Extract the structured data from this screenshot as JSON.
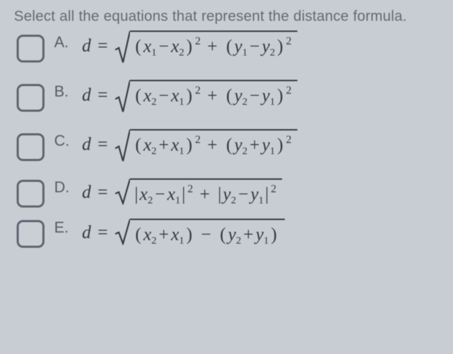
{
  "prompt": "Select all the equations that represent the distance formula.",
  "colors": {
    "bg": "#c8cdd4",
    "text": "#3a4048",
    "mutedText": "#636a74",
    "math": "#2e333b",
    "checkboxBorder": "#5a6270"
  },
  "typography": {
    "promptFontSize": 21,
    "letterFontSize": 22,
    "mathFontSize": 26,
    "subFontSize": 15,
    "supFontSize": 16,
    "mathFont": "Times New Roman"
  },
  "checkbox": {
    "width": 34,
    "height": 34,
    "borderRadius": 9,
    "borderWidth": 3
  },
  "sqrt": {
    "vinculumThickness": 2.2
  },
  "options": [
    {
      "letter": "A.",
      "checked": false,
      "formula": {
        "lhs": "d",
        "form": "sqrt_sum_squares",
        "terms": [
          {
            "bracket": "paren",
            "a": {
              "var": "x",
              "sub": "1"
            },
            "op": "−",
            "b": {
              "var": "x",
              "sub": "2"
            },
            "power": 2
          },
          {
            "bracket": "paren",
            "a": {
              "var": "y",
              "sub": "1"
            },
            "op": "−",
            "b": {
              "var": "y",
              "sub": "2"
            },
            "power": 2
          }
        ],
        "joiner": "+",
        "tallRadical": true
      }
    },
    {
      "letter": "B.",
      "checked": false,
      "formula": {
        "lhs": "d",
        "form": "sqrt_sum_squares",
        "terms": [
          {
            "bracket": "paren",
            "a": {
              "var": "x",
              "sub": "2"
            },
            "op": "−",
            "b": {
              "var": "x",
              "sub": "1"
            },
            "power": 2
          },
          {
            "bracket": "paren",
            "a": {
              "var": "y",
              "sub": "2"
            },
            "op": "−",
            "b": {
              "var": "y",
              "sub": "1"
            },
            "power": 2
          }
        ],
        "joiner": "+",
        "tallRadical": true
      }
    },
    {
      "letter": "C.",
      "checked": false,
      "formula": {
        "lhs": "d",
        "form": "sqrt_sum_squares",
        "terms": [
          {
            "bracket": "paren",
            "a": {
              "var": "x",
              "sub": "2"
            },
            "op": "+",
            "b": {
              "var": "x",
              "sub": "1"
            },
            "power": 2
          },
          {
            "bracket": "paren",
            "a": {
              "var": "y",
              "sub": "2"
            },
            "op": "+",
            "b": {
              "var": "y",
              "sub": "1"
            },
            "power": 2
          }
        ],
        "joiner": "+",
        "tallRadical": true
      }
    },
    {
      "letter": "D.",
      "checked": false,
      "formula": {
        "lhs": "d",
        "form": "sqrt_sum_squares",
        "terms": [
          {
            "bracket": "abs",
            "a": {
              "var": "x",
              "sub": "2"
            },
            "op": "−",
            "b": {
              "var": "x",
              "sub": "1"
            },
            "power": 2
          },
          {
            "bracket": "abs",
            "a": {
              "var": "y",
              "sub": "2"
            },
            "op": "−",
            "b": {
              "var": "y",
              "sub": "1"
            },
            "power": 2
          }
        ],
        "joiner": "+",
        "tallRadical": false
      }
    },
    {
      "letter": "E.",
      "checked": false,
      "formula": {
        "lhs": "d",
        "form": "sqrt_plain",
        "terms": [
          {
            "bracket": "paren",
            "a": {
              "var": "x",
              "sub": "2"
            },
            "op": "+",
            "b": {
              "var": "x",
              "sub": "1"
            },
            "power": null
          },
          {
            "bracket": "paren",
            "a": {
              "var": "y",
              "sub": "2"
            },
            "op": "+",
            "b": {
              "var": "y",
              "sub": "1"
            },
            "power": null
          }
        ],
        "joiner": "−",
        "tallRadical": false
      }
    }
  ]
}
